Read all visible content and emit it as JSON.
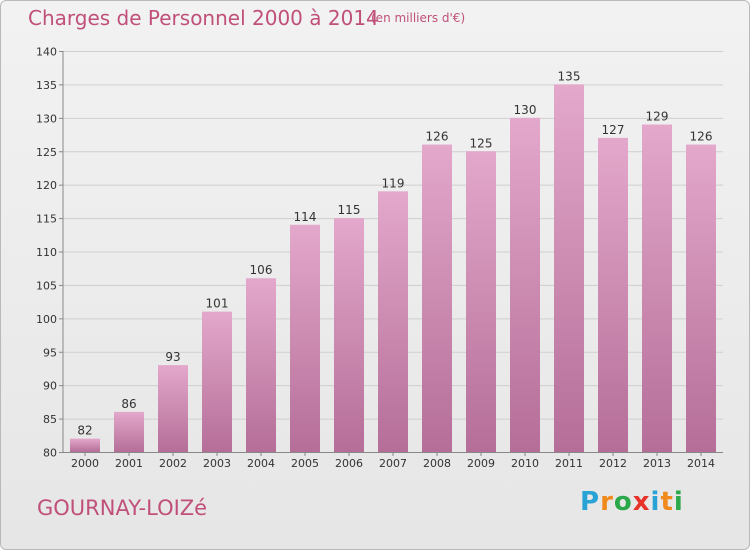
{
  "header": {
    "title": "Charges de Personnel 2000 à 2014",
    "subtitle": "(en milliers d'€)"
  },
  "footer": {
    "place": "GOURNAY-LOIZé",
    "logo_letters": [
      "P",
      "r",
      "o",
      "x",
      "i",
      "t",
      "i"
    ],
    "logo_colors": [
      "#29a3d6",
      "#f08a1d",
      "#2aa84a",
      "#e8332a",
      "#29a3d6",
      "#f08a1d",
      "#2aa84a"
    ]
  },
  "colors": {
    "bar_top": "#e3a8cb",
    "bar_bottom": "#b56e98",
    "text_accent": "#c0507a"
  },
  "chart_data": {
    "type": "bar",
    "title": "Charges de Personnel 2000 à 2014",
    "subtitle": "(en milliers d'€)",
    "categories": [
      "2000",
      "2001",
      "2002",
      "2003",
      "2004",
      "2005",
      "2006",
      "2007",
      "2008",
      "2009",
      "2010",
      "2011",
      "2012",
      "2013",
      "2014"
    ],
    "values": [
      82,
      86,
      93,
      101,
      106,
      114,
      115,
      119,
      126,
      125,
      130,
      135,
      127,
      129,
      126
    ],
    "ylim": [
      80,
      140
    ],
    "yticks": [
      80,
      85,
      90,
      95,
      100,
      105,
      110,
      115,
      120,
      125,
      130,
      135,
      140
    ],
    "grid": true,
    "data_labels": true
  }
}
